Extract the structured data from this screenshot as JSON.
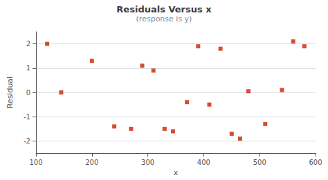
{
  "chart_data": {
    "type": "scatter",
    "title": "Residuals Versus x",
    "subtitle": "(response is y)",
    "xlabel": "x",
    "ylabel": "Residual",
    "x": [
      120,
      145,
      200,
      240,
      270,
      290,
      310,
      330,
      345,
      370,
      390,
      410,
      430,
      450,
      465,
      480,
      510,
      540,
      560,
      580
    ],
    "values": [
      2.0,
      0.0,
      1.3,
      -1.4,
      -1.5,
      1.1,
      0.9,
      -1.5,
      -1.6,
      -0.4,
      1.9,
      -0.5,
      1.8,
      -1.7,
      -1.9,
      0.05,
      -1.3,
      0.1,
      2.1,
      1.9
    ],
    "color": "#cc2200",
    "marker": "square",
    "xlim": [
      100,
      600
    ],
    "xticks": [
      100,
      200,
      300,
      400,
      500,
      600
    ],
    "ylim": [
      -2.5,
      2.5
    ],
    "yticks": [
      -2,
      -1,
      0,
      1,
      2
    ],
    "grid": "y"
  }
}
